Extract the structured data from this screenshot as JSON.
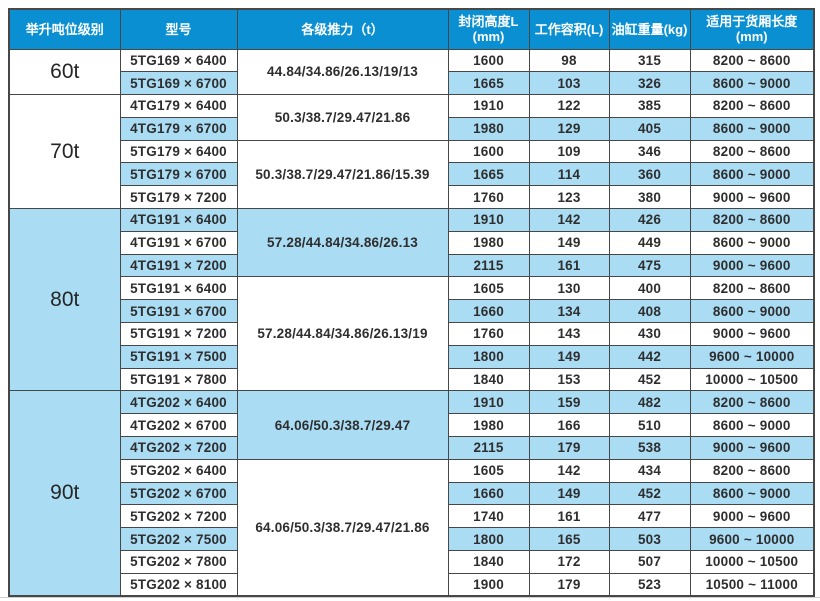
{
  "colors": {
    "header_bg": "#0a90d2",
    "header_text": "#ffffff",
    "row_alt_bg": "#aadcf4",
    "row_bg": "#ffffff",
    "border": "#474747",
    "text": "#2e2e2e"
  },
  "table": {
    "headers": [
      {
        "key": "tonnage-class",
        "label": "举升吨位级别",
        "sub": ""
      },
      {
        "key": "model",
        "label": "型号",
        "sub": ""
      },
      {
        "key": "thrust",
        "label": "各级推力（t）",
        "sub": ""
      },
      {
        "key": "closed-height",
        "label": "封闭高度L",
        "sub": "(mm)"
      },
      {
        "key": "working-volume",
        "label": "工作容积(L)",
        "sub": ""
      },
      {
        "key": "cylinder-weight",
        "label": "油缸重量(kg)",
        "sub": ""
      },
      {
        "key": "box-length",
        "label": "适用于货厢长度",
        "sub": "(mm)"
      }
    ],
    "groups": [
      {
        "tonnage": "60t",
        "subgroups": [
          {
            "thrust": "44.84/34.86/26.13/19/13",
            "thrust_shaded": false,
            "rows": [
              {
                "model": "5TG169 × 6400",
                "closed_height": "1600",
                "working_volume": "98",
                "cylinder_weight": "315",
                "box_length": "8200 ~ 8600",
                "shaded": false
              },
              {
                "model": "5TG169 × 6700",
                "closed_height": "1665",
                "working_volume": "103",
                "cylinder_weight": "326",
                "box_length": "8600 ~ 9000",
                "shaded": true
              }
            ]
          }
        ]
      },
      {
        "tonnage": "70t",
        "subgroups": [
          {
            "thrust": "50.3/38.7/29.47/21.86",
            "thrust_shaded": false,
            "rows": [
              {
                "model": "4TG179 × 6400",
                "closed_height": "1910",
                "working_volume": "122",
                "cylinder_weight": "385",
                "box_length": "8200 ~ 8600",
                "shaded": false
              },
              {
                "model": "4TG179 × 6700",
                "closed_height": "1980",
                "working_volume": "129",
                "cylinder_weight": "405",
                "box_length": "8600 ~ 9000",
                "shaded": true
              }
            ]
          },
          {
            "thrust": "50.3/38.7/29.47/21.86/15.39",
            "thrust_shaded": false,
            "rows": [
              {
                "model": "5TG179 × 6400",
                "closed_height": "1600",
                "working_volume": "109",
                "cylinder_weight": "346",
                "box_length": "8200 ~ 8600",
                "shaded": false
              },
              {
                "model": "5TG179 × 6700",
                "closed_height": "1665",
                "working_volume": "114",
                "cylinder_weight": "360",
                "box_length": "8600 ~ 9000",
                "shaded": true
              },
              {
                "model": "5TG179 × 7200",
                "closed_height": "1760",
                "working_volume": "123",
                "cylinder_weight": "380",
                "box_length": "9000 ~ 9600",
                "shaded": false
              }
            ]
          }
        ]
      },
      {
        "tonnage": "80t",
        "subgroups": [
          {
            "thrust": "57.28/44.84/34.86/26.13",
            "thrust_shaded": true,
            "rows": [
              {
                "model": "4TG191 × 6400",
                "closed_height": "1910",
                "working_volume": "142",
                "cylinder_weight": "426",
                "box_length": "8200 ~ 8600",
                "shaded": true
              },
              {
                "model": "4TG191 × 6700",
                "closed_height": "1980",
                "working_volume": "149",
                "cylinder_weight": "449",
                "box_length": "8600 ~ 9000",
                "shaded": false
              },
              {
                "model": "4TG191 × 7200",
                "closed_height": "2115",
                "working_volume": "161",
                "cylinder_weight": "475",
                "box_length": "9000 ~ 9600",
                "shaded": true
              }
            ]
          },
          {
            "thrust": "57.28/44.84/34.86/26.13/19",
            "thrust_shaded": false,
            "rows": [
              {
                "model": "5TG191 × 6400",
                "closed_height": "1605",
                "working_volume": "130",
                "cylinder_weight": "400",
                "box_length": "8200 ~ 8600",
                "shaded": false
              },
              {
                "model": "5TG191 × 6700",
                "closed_height": "1660",
                "working_volume": "134",
                "cylinder_weight": "408",
                "box_length": "8600 ~ 9000",
                "shaded": true
              },
              {
                "model": "5TG191 × 7200",
                "closed_height": "1760",
                "working_volume": "143",
                "cylinder_weight": "430",
                "box_length": "9000 ~ 9600",
                "shaded": false
              },
              {
                "model": "5TG191 × 7500",
                "closed_height": "1800",
                "working_volume": "149",
                "cylinder_weight": "442",
                "box_length": "9600 ~ 10000",
                "shaded": true
              },
              {
                "model": "5TG191 × 7800",
                "closed_height": "1840",
                "working_volume": "153",
                "cylinder_weight": "452",
                "box_length": "10000 ~ 10500",
                "shaded": false
              }
            ]
          }
        ]
      },
      {
        "tonnage": "90t",
        "subgroups": [
          {
            "thrust": "64.06/50.3/38.7/29.47",
            "thrust_shaded": true,
            "rows": [
              {
                "model": "4TG202 × 6400",
                "closed_height": "1910",
                "working_volume": "159",
                "cylinder_weight": "482",
                "box_length": "8200 ~ 8600",
                "shaded": true
              },
              {
                "model": "4TG202 × 6700",
                "closed_height": "1980",
                "working_volume": "166",
                "cylinder_weight": "510",
                "box_length": "8600 ~ 9000",
                "shaded": false
              },
              {
                "model": "4TG202 × 7200",
                "closed_height": "2115",
                "working_volume": "179",
                "cylinder_weight": "538",
                "box_length": "9000 ~ 9600",
                "shaded": true
              }
            ]
          },
          {
            "thrust": "64.06/50.3/38.7/29.47/21.86",
            "thrust_shaded": false,
            "rows": [
              {
                "model": "5TG202 × 6400",
                "closed_height": "1605",
                "working_volume": "142",
                "cylinder_weight": "434",
                "box_length": "8200 ~ 8600",
                "shaded": false
              },
              {
                "model": "5TG202 × 6700",
                "closed_height": "1660",
                "working_volume": "149",
                "cylinder_weight": "452",
                "box_length": "8600 ~ 9000",
                "shaded": true
              },
              {
                "model": "5TG202 × 7200",
                "closed_height": "1740",
                "working_volume": "161",
                "cylinder_weight": "477",
                "box_length": "9000 ~ 9600",
                "shaded": false
              },
              {
                "model": "5TG202 × 7500",
                "closed_height": "1800",
                "working_volume": "165",
                "cylinder_weight": "503",
                "box_length": "9600 ~ 10000",
                "shaded": true
              },
              {
                "model": "5TG202 × 7800",
                "closed_height": "1840",
                "working_volume": "172",
                "cylinder_weight": "507",
                "box_length": "10000 ~ 10500",
                "shaded": false
              },
              {
                "model": "5TG202 × 8100",
                "closed_height": "1900",
                "working_volume": "179",
                "cylinder_weight": "523",
                "box_length": "10500 ~ 11000",
                "shaded": false
              }
            ]
          }
        ]
      }
    ]
  }
}
